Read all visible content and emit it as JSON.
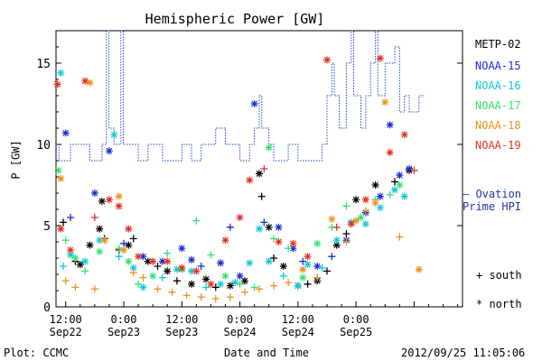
{
  "chart_data": {
    "type": "scatter",
    "title": "Hemispheric Power [GW]",
    "ylabel": "P [GW]",
    "xlabel": "Date and Time",
    "ylim": [
      0,
      17
    ],
    "yticks": [
      0,
      5,
      10,
      15
    ],
    "x_range_hours": [
      -14,
      70
    ],
    "xticks": [
      {
        "h": -12,
        "time": "12:00",
        "date": "Sep22"
      },
      {
        "h": 0,
        "time": "0:00",
        "date": "Sep23"
      },
      {
        "h": 12,
        "time": "12:00",
        "date": "Sep23"
      },
      {
        "h": 24,
        "time": "0:00",
        "date": "Sep24"
      },
      {
        "h": 36,
        "time": "12:00",
        "date": "Sep24"
      },
      {
        "h": 48,
        "time": "0:00",
        "date": "Sep25"
      }
    ],
    "series": [
      {
        "name": "METP-02",
        "color": "#000000",
        "points": [
          [
            -12.5,
            5.2,
            "+"
          ],
          [
            -10,
            2.8,
            "+"
          ],
          [
            -9,
            2.6,
            "*"
          ],
          [
            -7,
            3.8,
            "*"
          ],
          [
            -5,
            4.8,
            "*"
          ],
          [
            -4.5,
            6.5,
            "*"
          ],
          [
            -4,
            4.2,
            "+"
          ],
          [
            -1,
            3.5,
            "+"
          ],
          [
            1,
            3.8,
            "*"
          ],
          [
            2,
            4.2,
            "+"
          ],
          [
            5,
            2.8,
            "*"
          ],
          [
            7,
            2.5,
            "+"
          ],
          [
            9,
            2.2,
            "*"
          ],
          [
            11,
            1.6,
            "+"
          ],
          [
            14,
            1.4,
            "*"
          ],
          [
            17,
            1.7,
            "*"
          ],
          [
            19,
            1.2,
            "+"
          ],
          [
            22,
            1.3,
            "*"
          ],
          [
            25,
            1.6,
            "*"
          ],
          [
            28,
            8.2,
            "*"
          ],
          [
            28.5,
            6.8,
            "+"
          ],
          [
            30,
            4.9,
            "*"
          ],
          [
            31,
            3.0,
            "+"
          ],
          [
            33,
            2.5,
            "*"
          ],
          [
            36,
            1.3,
            "*"
          ],
          [
            38,
            1.4,
            "+"
          ],
          [
            40,
            1.6,
            "*"
          ],
          [
            42,
            2.2,
            "+"
          ],
          [
            44,
            3.8,
            "*"
          ],
          [
            46,
            4.5,
            "+"
          ],
          [
            48,
            6.6,
            "*"
          ],
          [
            52,
            7.5,
            "*"
          ],
          [
            56,
            7.7,
            "+"
          ],
          [
            59,
            8.4,
            "*"
          ]
        ]
      },
      {
        "name": "NOAA-15",
        "color": "#1a2ad0",
        "points": [
          [
            -12,
            10.7,
            "*"
          ],
          [
            -11,
            5.5,
            "+"
          ],
          [
            -6,
            7.0,
            "*"
          ],
          [
            -3,
            9.6,
            "*"
          ],
          [
            0,
            3.9,
            "+"
          ],
          [
            4,
            3.1,
            "*"
          ],
          [
            8,
            2.8,
            "*"
          ],
          [
            12,
            3.6,
            "*"
          ],
          [
            14,
            2.9,
            "*"
          ],
          [
            16,
            2.5,
            "+"
          ],
          [
            20,
            2.7,
            "*"
          ],
          [
            22,
            4.9,
            "+"
          ],
          [
            24,
            1.9,
            "*"
          ],
          [
            27,
            12.5,
            "*"
          ],
          [
            29,
            5.2,
            "+"
          ],
          [
            32,
            4.9,
            "*"
          ],
          [
            35,
            3.6,
            "*"
          ],
          [
            37,
            2.8,
            "+"
          ],
          [
            40,
            2.5,
            "*"
          ],
          [
            43,
            3.1,
            "+"
          ],
          [
            46,
            4.1,
            "*"
          ],
          [
            50,
            5.8,
            "*"
          ],
          [
            53,
            6.8,
            "*"
          ],
          [
            55,
            11.2,
            "*"
          ],
          [
            57,
            8.1,
            "*"
          ],
          [
            59,
            8.5,
            "*"
          ]
        ]
      },
      {
        "name": "NOAA-16",
        "color": "#10c8d8",
        "points": [
          [
            -13,
            14.4,
            "*"
          ],
          [
            -12.5,
            2.5,
            "+"
          ],
          [
            -11,
            3.2,
            "*"
          ],
          [
            -8,
            2.8,
            "*"
          ],
          [
            -5,
            4.1,
            "*"
          ],
          [
            -2,
            10.6,
            "*"
          ],
          [
            -1,
            3.1,
            "+"
          ],
          [
            2,
            2.4,
            "*"
          ],
          [
            4,
            1.2,
            "*"
          ],
          [
            8,
            1.8,
            "+"
          ],
          [
            11,
            2.3,
            "*"
          ],
          [
            14,
            2.2,
            "*"
          ],
          [
            17,
            1.2,
            "+"
          ],
          [
            20,
            1.4,
            "*"
          ],
          [
            23,
            1.5,
            "*"
          ],
          [
            26,
            2.7,
            "*"
          ],
          [
            28,
            4.8,
            "*"
          ],
          [
            30,
            2.8,
            "*"
          ],
          [
            33,
            1.9,
            "+"
          ],
          [
            36,
            1.3,
            "*"
          ],
          [
            38,
            2.6,
            "*"
          ],
          [
            41,
            2.4,
            "+"
          ],
          [
            44,
            4.1,
            "*"
          ],
          [
            47,
            5.2,
            "*"
          ],
          [
            50,
            5.1,
            "*"
          ],
          [
            53,
            6.1,
            "*"
          ],
          [
            56,
            7.2,
            "*"
          ],
          [
            58,
            6.8,
            "*"
          ]
        ]
      },
      {
        "name": "NOAA-17",
        "color": "#38e070",
        "points": [
          [
            -13.5,
            8.4,
            "*"
          ],
          [
            -12,
            4.1,
            "+"
          ],
          [
            -10,
            3.0,
            "*"
          ],
          [
            -8,
            2.2,
            "+"
          ],
          [
            -5,
            3.4,
            "*"
          ],
          [
            -1,
            3.6,
            "+"
          ],
          [
            1,
            2.8,
            "*"
          ],
          [
            3,
            1.4,
            "+"
          ],
          [
            6,
            1.9,
            "*"
          ],
          [
            9,
            3.3,
            "+"
          ],
          [
            12,
            2.3,
            "*"
          ],
          [
            15,
            5.3,
            "+"
          ],
          [
            18,
            3.2,
            "+"
          ],
          [
            21,
            1.9,
            "*"
          ],
          [
            24,
            1.4,
            "+"
          ],
          [
            27,
            1.2,
            "+"
          ],
          [
            30,
            9.8,
            "*"
          ],
          [
            31,
            4.2,
            "+"
          ],
          [
            34,
            3.6,
            "+"
          ],
          [
            37,
            1.8,
            "*"
          ],
          [
            40,
            3.9,
            "*"
          ],
          [
            43,
            4.9,
            "+"
          ],
          [
            46,
            6.2,
            "+"
          ],
          [
            49,
            5.5,
            "*"
          ],
          [
            52,
            6.6,
            "+"
          ],
          [
            55,
            6.9,
            "+"
          ],
          [
            57,
            7.5,
            "*"
          ]
        ]
      },
      {
        "name": "NOAA-18",
        "color": "#f09020",
        "points": [
          [
            -13,
            7.9,
            "*"
          ],
          [
            -12,
            1.6,
            "+"
          ],
          [
            -10,
            1.2,
            "+"
          ],
          [
            -7,
            13.8,
            "*"
          ],
          [
            -6,
            1.1,
            "+"
          ],
          [
            -4,
            4.1,
            "*"
          ],
          [
            -1,
            6.8,
            "*"
          ],
          [
            0,
            3.5,
            "*"
          ],
          [
            2,
            2.1,
            "+"
          ],
          [
            4,
            1.8,
            "+"
          ],
          [
            7,
            1.1,
            "+"
          ],
          [
            10,
            0.9,
            "+"
          ],
          [
            13,
            0.7,
            "+"
          ],
          [
            16,
            0.6,
            "+"
          ],
          [
            19,
            0.5,
            "+"
          ],
          [
            22,
            0.6,
            "+"
          ],
          [
            25,
            0.9,
            "+"
          ],
          [
            28,
            1.1,
            "+"
          ],
          [
            31,
            1.3,
            "+"
          ],
          [
            34,
            1.5,
            "+"
          ],
          [
            37,
            2.3,
            "*"
          ],
          [
            40,
            1.8,
            "+"
          ],
          [
            43,
            5.4,
            "*"
          ],
          [
            46,
            4.0,
            "+"
          ],
          [
            48,
            5.3,
            "*"
          ],
          [
            50,
            5.9,
            "+"
          ],
          [
            52,
            6.4,
            "*"
          ],
          [
            54,
            12.6,
            "*"
          ],
          [
            57,
            4.3,
            "+"
          ],
          [
            61,
            2.3,
            "*"
          ]
        ]
      },
      {
        "name": "NOAA-19",
        "color": "#e03020",
        "points": [
          [
            -13.7,
            13.7,
            "*"
          ],
          [
            -13,
            4.8,
            "*"
          ],
          [
            -11,
            3.5,
            "*"
          ],
          [
            -8,
            13.9,
            "*"
          ],
          [
            -6,
            5.5,
            "+"
          ],
          [
            -3,
            6.6,
            "*"
          ],
          [
            -1,
            6.2,
            "*"
          ],
          [
            1,
            4.8,
            "*"
          ],
          [
            3,
            3.1,
            "*"
          ],
          [
            6,
            2.8,
            "*"
          ],
          [
            9,
            2.8,
            "*"
          ],
          [
            12,
            2.4,
            "*"
          ],
          [
            15,
            2.2,
            "*"
          ],
          [
            18,
            1.4,
            "*"
          ],
          [
            21,
            4.1,
            "*"
          ],
          [
            24,
            5.5,
            "*"
          ],
          [
            26,
            7.8,
            "*"
          ],
          [
            29,
            8.5,
            "+"
          ],
          [
            32,
            4.0,
            "*"
          ],
          [
            35,
            3.9,
            "*"
          ],
          [
            38,
            3.1,
            "*"
          ],
          [
            42,
            15.2,
            "*"
          ],
          [
            44,
            4.9,
            "+"
          ],
          [
            47,
            5.1,
            "*"
          ],
          [
            50,
            6.6,
            "*"
          ],
          [
            53,
            15.3,
            "*"
          ],
          [
            55,
            9.5,
            "*"
          ],
          [
            58,
            10.6,
            "*"
          ],
          [
            60,
            8.4,
            "+"
          ]
        ]
      }
    ],
    "ovation": {
      "name": "Ovation Prime HPI",
      "color": "#2244cc",
      "points": [
        [
          -14,
          10
        ],
        [
          -13.4,
          10
        ],
        [
          -13.4,
          9
        ],
        [
          -11,
          9
        ],
        [
          -11,
          10
        ],
        [
          -7,
          10
        ],
        [
          -7,
          9
        ],
        [
          -4.5,
          9
        ],
        [
          -4.5,
          10
        ],
        [
          -3.6,
          10
        ],
        [
          -3.6,
          17
        ],
        [
          -3.1,
          17
        ],
        [
          -3.1,
          11
        ],
        [
          -2,
          11
        ],
        [
          -2,
          10
        ],
        [
          -0.6,
          10
        ],
        [
          -0.6,
          17
        ],
        [
          -0.1,
          17
        ],
        [
          -0.1,
          10
        ],
        [
          3,
          10
        ],
        [
          3,
          9
        ],
        [
          5,
          9
        ],
        [
          5,
          10
        ],
        [
          8,
          10
        ],
        [
          8,
          9
        ],
        [
          12,
          9
        ],
        [
          12,
          10
        ],
        [
          14,
          10
        ],
        [
          14,
          9
        ],
        [
          16,
          9
        ],
        [
          16,
          10
        ],
        [
          19,
          10
        ],
        [
          19,
          11
        ],
        [
          21,
          11
        ],
        [
          21,
          10
        ],
        [
          24,
          10
        ],
        [
          24,
          9
        ],
        [
          26,
          9
        ],
        [
          26,
          10
        ],
        [
          27,
          10
        ],
        [
          27,
          11
        ],
        [
          28,
          11
        ],
        [
          28,
          13
        ],
        [
          28.5,
          13
        ],
        [
          28.5,
          11
        ],
        [
          30,
          11
        ],
        [
          30,
          10
        ],
        [
          31,
          10
        ],
        [
          31,
          9
        ],
        [
          34,
          9
        ],
        [
          34,
          10
        ],
        [
          36,
          10
        ],
        [
          36,
          9
        ],
        [
          41,
          9
        ],
        [
          41,
          10
        ],
        [
          42,
          10
        ],
        [
          42,
          13
        ],
        [
          43,
          13
        ],
        [
          43,
          15
        ],
        [
          43.5,
          15
        ],
        [
          43.5,
          13
        ],
        [
          44.5,
          13
        ],
        [
          44.5,
          11
        ],
        [
          46,
          11
        ],
        [
          46,
          15
        ],
        [
          47,
          15
        ],
        [
          47,
          17
        ],
        [
          47.5,
          17
        ],
        [
          47.5,
          13
        ],
        [
          49,
          13
        ],
        [
          49,
          11
        ],
        [
          50,
          11
        ],
        [
          50,
          13
        ],
        [
          51,
          13
        ],
        [
          51,
          15
        ],
        [
          52,
          15
        ],
        [
          52,
          17
        ],
        [
          52.5,
          17
        ],
        [
          52.5,
          13
        ],
        [
          54,
          13
        ],
        [
          54,
          15
        ],
        [
          56,
          15
        ],
        [
          56,
          16
        ],
        [
          57,
          16
        ],
        [
          57,
          12
        ],
        [
          58,
          12
        ],
        [
          58,
          13
        ],
        [
          59,
          13
        ],
        [
          59,
          12
        ],
        [
          61,
          12
        ],
        [
          61,
          13
        ],
        [
          62,
          13
        ]
      ]
    },
    "symbols": {
      "south": "+ south",
      "north": "* north"
    }
  },
  "footer": {
    "left": "Plot: CCMC",
    "center": "Date and Time",
    "right": "2012/09/25 11:05:06"
  },
  "legend": {
    "ovation_line1": "— Ovation",
    "ovation_line2": "Prime HPI"
  }
}
